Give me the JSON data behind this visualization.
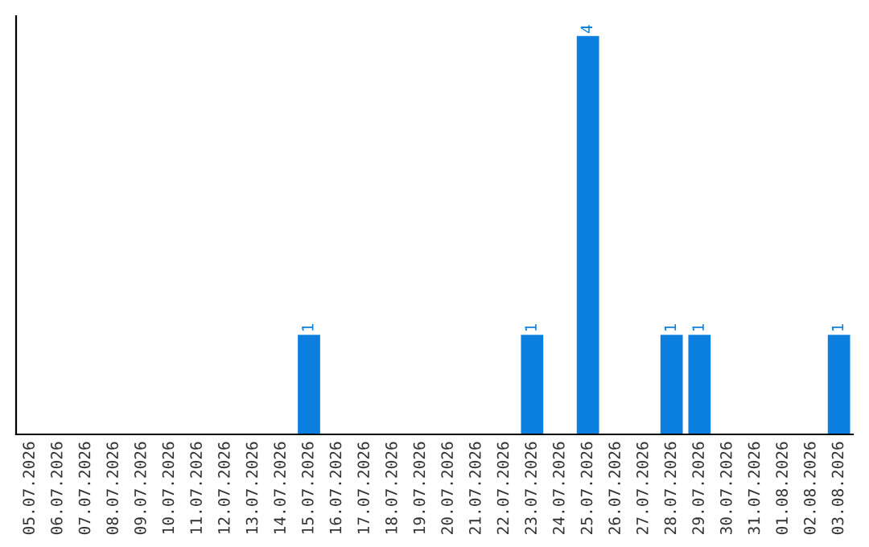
{
  "chart_data": {
    "type": "bar",
    "categories": [
      "05.07.2026",
      "06.07.2026",
      "07.07.2026",
      "08.07.2026",
      "09.07.2026",
      "10.07.2026",
      "11.07.2026",
      "12.07.2026",
      "13.07.2026",
      "14.07.2026",
      "15.07.2026",
      "16.07.2026",
      "17.07.2026",
      "18.07.2026",
      "19.07.2026",
      "20.07.2026",
      "21.07.2026",
      "22.07.2026",
      "23.07.2026",
      "24.07.2026",
      "25.07.2026",
      "26.07.2026",
      "27.07.2026",
      "28.07.2026",
      "29.07.2026",
      "30.07.2026",
      "31.07.2026",
      "01.08.2026",
      "02.08.2026",
      "03.08.2026"
    ],
    "values": [
      0,
      0,
      0,
      0,
      0,
      0,
      0,
      0,
      0,
      0,
      1,
      0,
      0,
      0,
      0,
      0,
      0,
      0,
      1,
      0,
      4,
      0,
      0,
      1,
      1,
      0,
      0,
      0,
      0,
      1
    ],
    "value_labels": [
      null,
      null,
      null,
      null,
      null,
      null,
      null,
      null,
      null,
      null,
      "1",
      null,
      null,
      null,
      null,
      null,
      null,
      null,
      "1",
      null,
      "4",
      null,
      null,
      "1",
      "1",
      null,
      null,
      null,
      null,
      "1"
    ],
    "color": "#0a7fe0",
    "ylim": [
      0,
      4.2
    ],
    "tick_labels": "x",
    "grid": false,
    "legend": false
  }
}
